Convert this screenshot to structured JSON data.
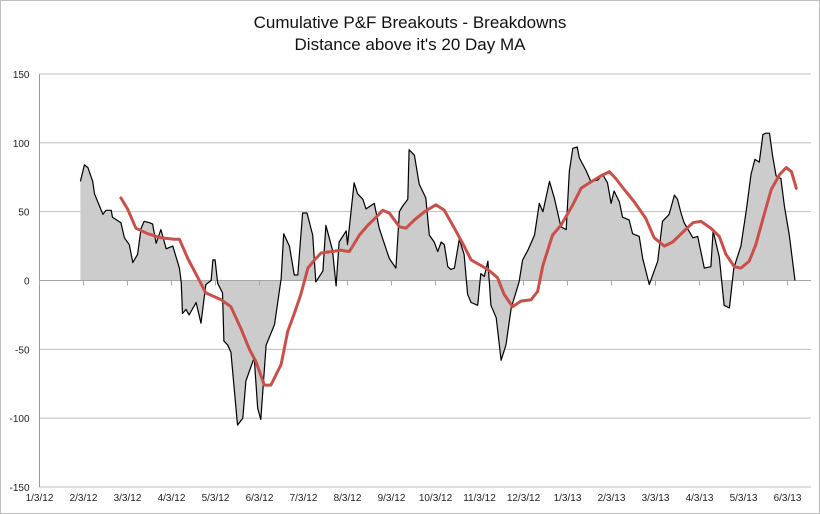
{
  "chart_data": {
    "type": "area",
    "title": "Cumulative P&F Breakouts - Breakdowns",
    "subtitle": "Distance above it's 20 Day MA",
    "xlabel": "",
    "ylabel": "",
    "x_unit": "months since 1/3/12",
    "ylim": [
      -150,
      150
    ],
    "yticks": [
      150,
      100,
      50,
      0,
      -50,
      -100,
      -150
    ],
    "xticks": [
      "1/3/12",
      "2/3/12",
      "3/3/12",
      "4/3/12",
      "5/3/12",
      "6/3/12",
      "7/3/12",
      "8/3/12",
      "9/3/12",
      "10/3/12",
      "11/3/12",
      "12/3/12",
      "1/3/13",
      "2/3/13",
      "3/3/13",
      "4/3/13",
      "5/3/13",
      "6/3/13"
    ],
    "grid": true,
    "legend": "none",
    "colors": {
      "area": "#cccccc",
      "line": "#000000",
      "ma": "#c9504a",
      "grid": "#bfbfbf"
    },
    "series": [
      {
        "name": "Distance above 20 Day MA",
        "style": "area",
        "points": [
          [
            0.93,
            72
          ],
          [
            1.02,
            84
          ],
          [
            1.1,
            82
          ],
          [
            1.21,
            72
          ],
          [
            1.25,
            63
          ],
          [
            1.44,
            48
          ],
          [
            1.51,
            51
          ],
          [
            1.63,
            51
          ],
          [
            1.66,
            46
          ],
          [
            1.85,
            42
          ],
          [
            1.93,
            31
          ],
          [
            2.04,
            26
          ],
          [
            2.12,
            13
          ],
          [
            2.23,
            19
          ],
          [
            2.31,
            38
          ],
          [
            2.38,
            43
          ],
          [
            2.5,
            42
          ],
          [
            2.57,
            41
          ],
          [
            2.65,
            27
          ],
          [
            2.76,
            37
          ],
          [
            2.88,
            23
          ],
          [
            3.03,
            25
          ],
          [
            3.18,
            9
          ],
          [
            3.22,
            -1
          ],
          [
            3.25,
            -24
          ],
          [
            3.33,
            -21
          ],
          [
            3.4,
            -25
          ],
          [
            3.56,
            -16
          ],
          [
            3.67,
            -31
          ],
          [
            3.78,
            -3
          ],
          [
            3.9,
            0
          ],
          [
            3.94,
            15
          ],
          [
            3.99,
            15
          ],
          [
            4.05,
            -2
          ],
          [
            4.16,
            -9
          ],
          [
            4.19,
            -44
          ],
          [
            4.28,
            -47
          ],
          [
            4.35,
            -52
          ],
          [
            4.5,
            -105
          ],
          [
            4.62,
            -100
          ],
          [
            4.69,
            -73
          ],
          [
            4.88,
            -56
          ],
          [
            4.96,
            -93
          ],
          [
            5.03,
            -101
          ],
          [
            5.15,
            -47
          ],
          [
            5.34,
            -32
          ],
          [
            5.49,
            1
          ],
          [
            5.55,
            34
          ],
          [
            5.68,
            25
          ],
          [
            5.79,
            4
          ],
          [
            5.87,
            4
          ],
          [
            5.98,
            49
          ],
          [
            6.08,
            49
          ],
          [
            6.21,
            33
          ],
          [
            6.28,
            -1
          ],
          [
            6.44,
            7
          ],
          [
            6.51,
            40
          ],
          [
            6.66,
            22
          ],
          [
            6.74,
            -4
          ],
          [
            6.81,
            28
          ],
          [
            6.97,
            36
          ],
          [
            7.0,
            26
          ],
          [
            7.15,
            71
          ],
          [
            7.23,
            63
          ],
          [
            7.35,
            59
          ],
          [
            7.42,
            52
          ],
          [
            7.61,
            56
          ],
          [
            7.72,
            38
          ],
          [
            7.95,
            16
          ],
          [
            8.1,
            9
          ],
          [
            8.18,
            50
          ],
          [
            8.25,
            54
          ],
          [
            8.37,
            59
          ],
          [
            8.4,
            95
          ],
          [
            8.52,
            91
          ],
          [
            8.63,
            70
          ],
          [
            8.78,
            60
          ],
          [
            8.86,
            33
          ],
          [
            8.97,
            28
          ],
          [
            9.05,
            21
          ],
          [
            9.13,
            28
          ],
          [
            9.2,
            26
          ],
          [
            9.28,
            10
          ],
          [
            9.35,
            8
          ],
          [
            9.43,
            9
          ],
          [
            9.54,
            30
          ],
          [
            9.65,
            19
          ],
          [
            9.73,
            -10
          ],
          [
            9.81,
            -16
          ],
          [
            9.96,
            -18
          ],
          [
            10.03,
            5
          ],
          [
            10.11,
            3
          ],
          [
            10.19,
            14
          ],
          [
            10.26,
            -18
          ],
          [
            10.38,
            -27
          ],
          [
            10.49,
            -58
          ],
          [
            10.6,
            -47
          ],
          [
            10.72,
            -20
          ],
          [
            10.9,
            -1
          ],
          [
            10.98,
            15
          ],
          [
            11.1,
            22
          ],
          [
            11.25,
            33
          ],
          [
            11.36,
            56
          ],
          [
            11.44,
            50
          ],
          [
            11.59,
            72
          ],
          [
            11.7,
            60
          ],
          [
            11.85,
            39
          ],
          [
            11.97,
            37
          ],
          [
            12.04,
            79
          ],
          [
            12.12,
            96
          ],
          [
            12.22,
            97
          ],
          [
            12.27,
            89
          ],
          [
            12.42,
            80
          ],
          [
            12.53,
            72
          ],
          [
            12.69,
            73
          ],
          [
            12.8,
            77
          ],
          [
            12.91,
            71
          ],
          [
            12.99,
            56
          ],
          [
            13.06,
            65
          ],
          [
            13.18,
            57
          ],
          [
            13.25,
            46
          ],
          [
            13.4,
            44
          ],
          [
            13.48,
            34
          ],
          [
            13.63,
            32
          ],
          [
            13.71,
            16
          ],
          [
            13.86,
            -3
          ],
          [
            14.05,
            14
          ],
          [
            14.16,
            43
          ],
          [
            14.31,
            48
          ],
          [
            14.43,
            62
          ],
          [
            14.5,
            59
          ],
          [
            14.58,
            49
          ],
          [
            14.65,
            42
          ],
          [
            14.85,
            31
          ],
          [
            14.96,
            32
          ],
          [
            15.11,
            9
          ],
          [
            15.26,
            10
          ],
          [
            15.31,
            36
          ],
          [
            15.45,
            17
          ],
          [
            15.56,
            -18
          ],
          [
            15.68,
            -20
          ],
          [
            15.78,
            9
          ],
          [
            15.94,
            25
          ],
          [
            16.06,
            50
          ],
          [
            16.17,
            77
          ],
          [
            16.26,
            88
          ],
          [
            16.36,
            86
          ],
          [
            16.44,
            106
          ],
          [
            16.51,
            107
          ],
          [
            16.59,
            107
          ],
          [
            16.66,
            91
          ],
          [
            16.74,
            76
          ],
          [
            16.85,
            74
          ],
          [
            16.93,
            54
          ],
          [
            17.04,
            33
          ],
          [
            17.17,
            0
          ]
        ]
      },
      {
        "name": "20 Day MA",
        "style": "line",
        "points": [
          [
            1.85,
            60
          ],
          [
            2.0,
            52
          ],
          [
            2.19,
            38
          ],
          [
            2.46,
            34
          ],
          [
            2.76,
            31
          ],
          [
            3.06,
            30
          ],
          [
            3.18,
            30
          ],
          [
            3.37,
            16
          ],
          [
            3.6,
            2
          ],
          [
            3.78,
            -9
          ],
          [
            4.13,
            -14
          ],
          [
            4.35,
            -19
          ],
          [
            4.58,
            -35
          ],
          [
            4.77,
            -50
          ],
          [
            4.92,
            -59
          ],
          [
            5.11,
            -76
          ],
          [
            5.26,
            -76
          ],
          [
            5.49,
            -61
          ],
          [
            5.64,
            -37
          ],
          [
            5.79,
            -24
          ],
          [
            5.94,
            -10
          ],
          [
            6.1,
            9
          ],
          [
            6.25,
            15
          ],
          [
            6.4,
            20
          ],
          [
            6.63,
            21
          ],
          [
            6.85,
            22
          ],
          [
            7.04,
            21
          ],
          [
            7.27,
            33
          ],
          [
            7.46,
            40
          ],
          [
            7.65,
            46
          ],
          [
            7.8,
            51
          ],
          [
            7.95,
            49
          ],
          [
            8.18,
            39
          ],
          [
            8.33,
            38
          ],
          [
            8.52,
            44
          ],
          [
            8.75,
            50
          ],
          [
            9.01,
            55
          ],
          [
            9.2,
            51
          ],
          [
            9.43,
            38
          ],
          [
            9.65,
            25
          ],
          [
            9.81,
            15
          ],
          [
            10.19,
            8
          ],
          [
            10.41,
            2
          ],
          [
            10.56,
            -10
          ],
          [
            10.75,
            -19
          ],
          [
            10.94,
            -15
          ],
          [
            11.17,
            -14
          ],
          [
            11.32,
            -8
          ],
          [
            11.44,
            11
          ],
          [
            11.66,
            33
          ],
          [
            11.85,
            40
          ],
          [
            12.12,
            55
          ],
          [
            12.31,
            67
          ],
          [
            12.5,
            71
          ],
          [
            12.76,
            76
          ],
          [
            12.95,
            79
          ],
          [
            13.1,
            74
          ],
          [
            13.29,
            66
          ],
          [
            13.52,
            57
          ],
          [
            13.78,
            45
          ],
          [
            13.97,
            31
          ],
          [
            14.2,
            25
          ],
          [
            14.39,
            28
          ],
          [
            14.65,
            36
          ],
          [
            14.85,
            42
          ],
          [
            15.03,
            43
          ],
          [
            15.26,
            38
          ],
          [
            15.45,
            32
          ],
          [
            15.6,
            19
          ],
          [
            15.79,
            10
          ],
          [
            15.94,
            9
          ],
          [
            16.13,
            14
          ],
          [
            16.28,
            26
          ],
          [
            16.47,
            48
          ],
          [
            16.63,
            66
          ],
          [
            16.82,
            77
          ],
          [
            16.97,
            82
          ],
          [
            17.09,
            79
          ],
          [
            17.2,
            67
          ]
        ]
      }
    ]
  }
}
